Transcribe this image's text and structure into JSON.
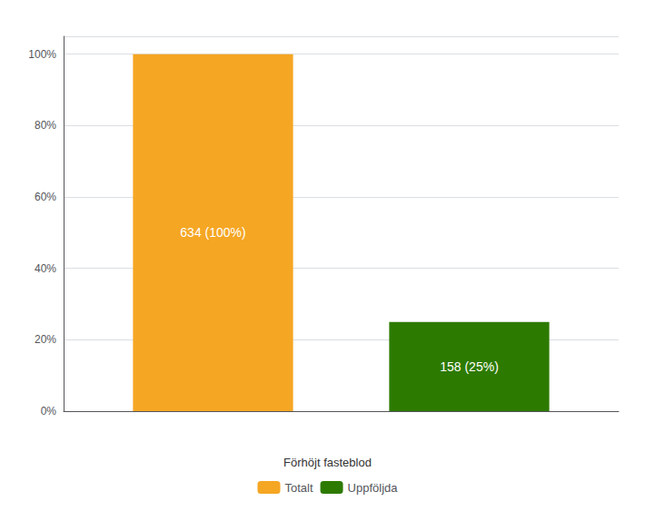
{
  "chart_data": {
    "type": "bar",
    "categories": [
      null
    ],
    "series": [
      {
        "name": "Totalt",
        "color": "#F5A623",
        "values": [
          1.0
        ],
        "value_labels": [
          "634 (100%)"
        ]
      },
      {
        "name": "Uppföljda",
        "color": "#2D7A00",
        "values": [
          0.25
        ],
        "value_labels": [
          "158 (25%)"
        ]
      }
    ],
    "ylim": [
      0,
      1.05
    ],
    "yticks": [
      {
        "value": 0,
        "label": "0%"
      },
      {
        "value": 0.2,
        "label": "20%"
      },
      {
        "value": 0.4,
        "label": "40%"
      },
      {
        "value": 0.6,
        "label": "60%"
      },
      {
        "value": 0.8,
        "label": "80%"
      },
      {
        "value": 1.0,
        "label": "100%"
      }
    ],
    "legend_title": "Förhöjt fasteblod",
    "legend": "bottom",
    "grid": true,
    "data_labels": true,
    "tick_labels": "y"
  }
}
